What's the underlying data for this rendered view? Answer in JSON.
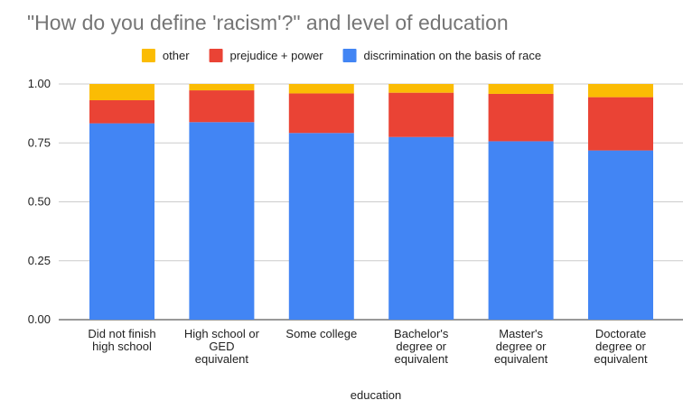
{
  "chart_data": {
    "type": "bar",
    "stacked": true,
    "title": "\"How do you define 'racism'?\" and level of education",
    "xlabel": "education",
    "ylabel": "",
    "ylim": [
      0,
      1
    ],
    "yticks": [
      "0.00",
      "0.25",
      "0.50",
      "0.75",
      "1.00"
    ],
    "grid": true,
    "legend_position": "top",
    "categories": [
      [
        "Did not finish",
        "high school"
      ],
      [
        "High school or",
        "GED",
        "equivalent"
      ],
      [
        "Some college"
      ],
      [
        "Bachelor's",
        "degree or",
        "equivalent"
      ],
      [
        "Master's",
        "degree or",
        "equivalent"
      ],
      [
        "Doctorate",
        "degree or",
        "equivalent"
      ]
    ],
    "series": [
      {
        "name": "discrimination on the basis of race",
        "color": "#4285f4",
        "values": [
          0.833,
          0.838,
          0.792,
          0.775,
          0.757,
          0.718
        ]
      },
      {
        "name": "prejudice + power",
        "color": "#ea4335",
        "values": [
          0.098,
          0.135,
          0.168,
          0.188,
          0.201,
          0.226
        ]
      },
      {
        "name": "other",
        "color": "#fbbc04",
        "values": [
          0.069,
          0.027,
          0.04,
          0.037,
          0.042,
          0.056
        ]
      }
    ],
    "legend_order": [
      "other",
      "prejudice + power",
      "discrimination on the basis of race"
    ]
  }
}
